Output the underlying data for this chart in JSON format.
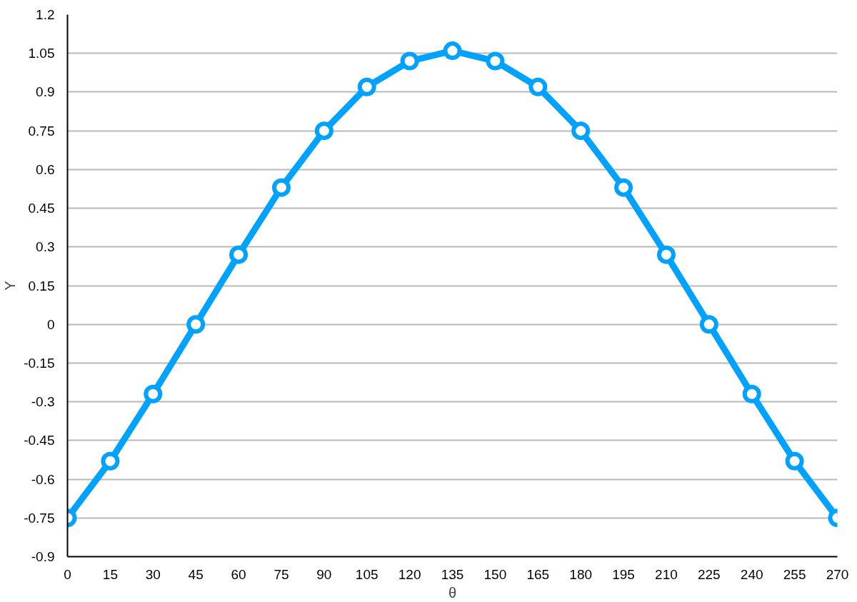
{
  "chart_data": {
    "type": "line",
    "xlabel": "θ",
    "ylabel": "Y",
    "x": [
      0,
      15,
      30,
      45,
      60,
      75,
      90,
      105,
      120,
      135,
      150,
      165,
      180,
      195,
      210,
      225,
      240,
      255,
      270
    ],
    "series": [
      {
        "color": "#00a2ff",
        "values": [
          -0.75,
          -0.53,
          -0.27,
          0,
          0.27,
          0.53,
          0.75,
          0.92,
          1.02,
          1.06,
          1.02,
          0.92,
          0.75,
          0.53,
          0.27,
          0,
          -0.27,
          -0.53,
          -0.75
        ]
      }
    ],
    "xlim": [
      0,
      270
    ],
    "xticks": [
      0,
      15,
      30,
      45,
      60,
      75,
      90,
      105,
      120,
      135,
      150,
      165,
      180,
      195,
      210,
      225,
      240,
      255,
      270
    ],
    "ylim": [
      -0.9,
      1.2
    ],
    "yticks": [
      -0.9,
      -0.75,
      -0.6,
      -0.45,
      -0.3,
      -0.15,
      0,
      0.15,
      0.3,
      0.45,
      0.6,
      0.75,
      0.9,
      1.05,
      1.2
    ],
    "grid": "y",
    "marker": "circle",
    "line_style": "solid"
  }
}
